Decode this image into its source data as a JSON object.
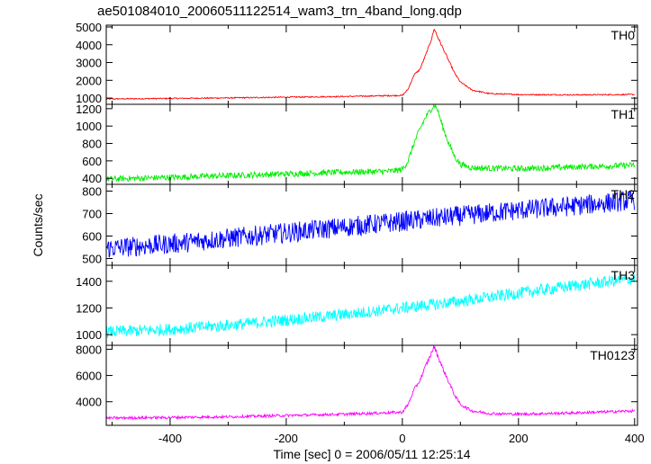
{
  "chart_data": {
    "type": "line",
    "title": "ae501084010_20060511122514_wam3_trn_4band_long.qdp",
    "xlabel": "Time [sec] 0 = 2006/05/11 12:25:14",
    "ylabel": "Counts/sec",
    "xlim": [
      -510,
      405
    ],
    "x_ticks": [
      -400,
      -200,
      0,
      200,
      400
    ],
    "grid": false,
    "panels": [
      {
        "name": "TH0",
        "color": "#ff0000",
        "ylim": [
          650,
          5100
        ],
        "y_ticks": [
          1000,
          2000,
          3000,
          4000,
          5000
        ],
        "x": [
          -510,
          -400,
          -300,
          -200,
          -100,
          0,
          10,
          20,
          30,
          40,
          50,
          55,
          60,
          70,
          80,
          90,
          100,
          120,
          150,
          200,
          300,
          400
        ],
        "y": [
          950,
          980,
          1010,
          1050,
          1090,
          1150,
          1500,
          2300,
          2600,
          3400,
          4300,
          4900,
          4500,
          3800,
          3100,
          2400,
          1900,
          1450,
          1250,
          1200,
          1180,
          1200
        ]
      },
      {
        "name": "TH1",
        "color": "#00ee00",
        "ylim": [
          330,
          1250
        ],
        "y_ticks": [
          400,
          600,
          800,
          1000,
          1200
        ],
        "x": [
          -510,
          -400,
          -300,
          -200,
          -100,
          -20,
          0,
          10,
          20,
          30,
          40,
          50,
          55,
          60,
          70,
          80,
          90,
          100,
          120,
          200,
          300,
          400
        ],
        "y": [
          390,
          410,
          430,
          450,
          470,
          480,
          500,
          600,
          800,
          960,
          1100,
          1200,
          1240,
          1200,
          980,
          800,
          650,
          560,
          520,
          510,
          530,
          550
        ]
      },
      {
        "name": "TH2",
        "color": "#0000ff",
        "ylim": [
          470,
          830
        ],
        "y_ticks": [
          500,
          600,
          700,
          800
        ],
        "x": [
          -510,
          -400,
          -300,
          -200,
          -100,
          0,
          100,
          200,
          300,
          400
        ],
        "y": [
          545,
          565,
          590,
          615,
          640,
          665,
          690,
          715,
          735,
          760
        ]
      },
      {
        "name": "TH3",
        "color": "#00ffff",
        "ylim": [
          920,
          1520
        ],
        "y_ticks": [
          1000,
          1200,
          1400
        ],
        "x": [
          -510,
          -400,
          -300,
          -200,
          -100,
          0,
          100,
          200,
          300,
          400
        ],
        "y": [
          1020,
          1040,
          1070,
          1110,
          1150,
          1200,
          1250,
          1310,
          1370,
          1420
        ]
      },
      {
        "name": "TH0123",
        "color": "#ff00ff",
        "ylim": [
          2200,
          8300
        ],
        "y_ticks": [
          4000,
          6000,
          8000
        ],
        "x": [
          -510,
          -400,
          -300,
          -200,
          -100,
          0,
          10,
          20,
          30,
          40,
          50,
          55,
          60,
          70,
          80,
          90,
          100,
          120,
          150,
          200,
          300,
          400
        ],
        "y": [
          2750,
          2800,
          2850,
          2950,
          3050,
          3200,
          3800,
          4900,
          5600,
          6700,
          7700,
          8200,
          7600,
          6500,
          5500,
          4500,
          3800,
          3300,
          3100,
          3050,
          3150,
          3300
        ]
      }
    ]
  }
}
